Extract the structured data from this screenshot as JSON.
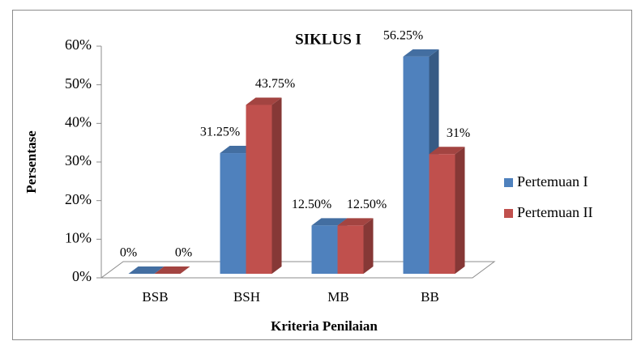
{
  "chart_data": {
    "type": "bar3d",
    "title": "SIKLUS I",
    "x_label": "Kriteria Penilaian",
    "y_label": "Persentase",
    "categories": [
      "BSB",
      "BSH",
      "MB",
      "BB"
    ],
    "series": [
      {
        "name": "Pertemuan I",
        "color": "#4f81bd",
        "values": [
          0,
          31.25,
          12.5,
          56.25
        ],
        "value_labels": [
          "0%",
          "31.25%",
          "12.50%",
          "56.25%"
        ]
      },
      {
        "name": "Pertemuan II",
        "color": "#c0504d",
        "values": [
          0,
          43.75,
          12.5,
          31
        ],
        "value_labels": [
          "0%",
          "43.75%",
          "12.50%",
          "31%"
        ]
      }
    ],
    "ylim": [
      0,
      60
    ],
    "yticks": [
      {
        "value": 0,
        "label": "0%"
      },
      {
        "value": 10,
        "label": "10%"
      },
      {
        "value": 20,
        "label": "20%"
      },
      {
        "value": 30,
        "label": "30%"
      },
      {
        "value": 40,
        "label": "40%"
      },
      {
        "value": 50,
        "label": "50%"
      },
      {
        "value": 60,
        "label": "60%"
      }
    ],
    "legend": "right"
  }
}
